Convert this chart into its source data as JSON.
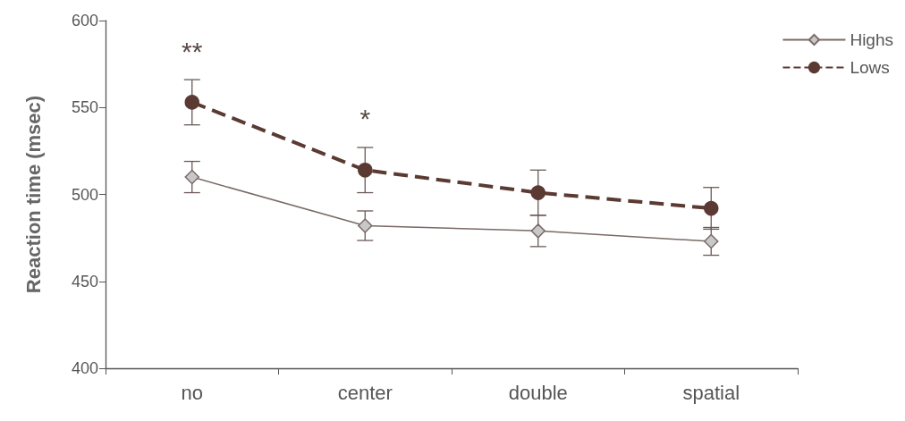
{
  "chart_data": {
    "type": "line",
    "ylabel": "Reaction time (msec)",
    "categories": [
      "no",
      "center",
      "double",
      "spatial"
    ],
    "series": [
      {
        "name": "Highs",
        "color": "#7a6a66",
        "marker": "diamond",
        "line_style": "solid",
        "values": [
          510,
          482,
          479,
          473
        ],
        "errors": [
          9,
          8.5,
          9,
          8
        ]
      },
      {
        "name": "Lows",
        "color": "#5a3a32",
        "marker": "circle",
        "line_style": "dashed",
        "values": [
          553,
          514,
          501,
          492
        ],
        "errors": [
          13,
          13,
          13,
          12
        ]
      }
    ],
    "ylim": [
      400,
      600
    ],
    "yticks": [
      400,
      450,
      500,
      550,
      600
    ],
    "grid": false,
    "legend": "top right",
    "annotations": [
      "**",
      "*"
    ]
  }
}
